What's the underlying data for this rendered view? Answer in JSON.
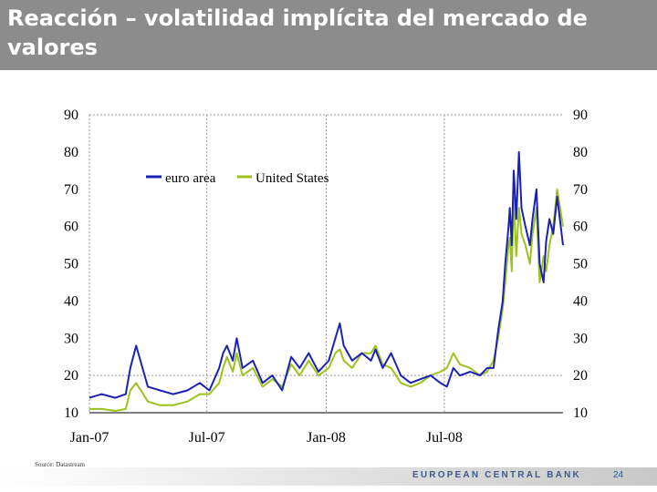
{
  "slide": {
    "title": "Reacción – volatilidad implícita del mercado de valores",
    "source": "Source: Datastream",
    "footer_logo": "EUROPEAN CENTRAL BANK",
    "page_number": "24"
  },
  "chart_data": {
    "type": "line",
    "title": "",
    "xlabel": "",
    "ylabel": "",
    "x_tick_labels": [
      "Jan-07",
      "Jul-07",
      "Jan-08",
      "Jul-08"
    ],
    "x_ticks": [
      "2007-01-01",
      "2007-07-01",
      "2008-01-01",
      "2008-07-01"
    ],
    "x_range": [
      "2007-01-01",
      "2008-12-31"
    ],
    "ylim": [
      10,
      90
    ],
    "y_ticks": [
      10,
      20,
      30,
      40,
      50,
      60,
      70,
      80,
      90
    ],
    "y_axis_sides": "both",
    "grid": "dashed horizontal and vertical",
    "legend_position": "top-left",
    "series": [
      {
        "name": "euro area",
        "color": "#1a22b4",
        "x": [
          "2007-01-01",
          "2007-01-20",
          "2007-02-10",
          "2007-02-26",
          "2007-03-05",
          "2007-03-14",
          "2007-04-01",
          "2007-04-20",
          "2007-05-10",
          "2007-06-01",
          "2007-06-20",
          "2007-07-05",
          "2007-07-20",
          "2007-07-26",
          "2007-08-01",
          "2007-08-10",
          "2007-08-16",
          "2007-08-25",
          "2007-09-10",
          "2007-09-25",
          "2007-10-10",
          "2007-10-25",
          "2007-11-08",
          "2007-11-21",
          "2007-12-05",
          "2007-12-20",
          "2008-01-05",
          "2008-01-15",
          "2008-01-22",
          "2008-01-28",
          "2008-02-10",
          "2008-02-25",
          "2008-03-10",
          "2008-03-17",
          "2008-03-28",
          "2008-04-10",
          "2008-04-25",
          "2008-05-10",
          "2008-05-25",
          "2008-06-10",
          "2008-06-25",
          "2008-07-05",
          "2008-07-15",
          "2008-07-25",
          "2008-08-10",
          "2008-08-25",
          "2008-09-05",
          "2008-09-15",
          "2008-09-22",
          "2008-09-29",
          "2008-10-03",
          "2008-10-08",
          "2008-10-10",
          "2008-10-13",
          "2008-10-16",
          "2008-10-20",
          "2008-10-24",
          "2008-10-28",
          "2008-11-03",
          "2008-11-10",
          "2008-11-14",
          "2008-11-20",
          "2008-11-25",
          "2008-12-01",
          "2008-12-05",
          "2008-12-10",
          "2008-12-16",
          "2008-12-22",
          "2008-12-31"
        ],
        "y": [
          14,
          15,
          14,
          15,
          22,
          28,
          17,
          16,
          15,
          16,
          18,
          16,
          22,
          26,
          28,
          24,
          30,
          22,
          24,
          18,
          20,
          16,
          25,
          22,
          26,
          21,
          24,
          30,
          34,
          28,
          24,
          26,
          24,
          27,
          22,
          26,
          20,
          18,
          19,
          20,
          18,
          17,
          22,
          20,
          21,
          20,
          22,
          22,
          32,
          40,
          50,
          60,
          65,
          55,
          75,
          62,
          80,
          65,
          60,
          55,
          62,
          70,
          50,
          45,
          56,
          62,
          58,
          68,
          55
        ]
      },
      {
        "name": "United States",
        "color": "#9cc31c",
        "x": [
          "2007-01-01",
          "2007-01-20",
          "2007-02-10",
          "2007-02-26",
          "2007-03-05",
          "2007-03-14",
          "2007-04-01",
          "2007-04-20",
          "2007-05-10",
          "2007-06-01",
          "2007-06-20",
          "2007-07-05",
          "2007-07-20",
          "2007-07-26",
          "2007-08-01",
          "2007-08-10",
          "2007-08-16",
          "2007-08-25",
          "2007-09-10",
          "2007-09-25",
          "2007-10-10",
          "2007-10-25",
          "2007-11-08",
          "2007-11-21",
          "2007-12-05",
          "2007-12-20",
          "2008-01-05",
          "2008-01-15",
          "2008-01-22",
          "2008-01-28",
          "2008-02-10",
          "2008-02-25",
          "2008-03-10",
          "2008-03-17",
          "2008-03-28",
          "2008-04-10",
          "2008-04-25",
          "2008-05-10",
          "2008-05-25",
          "2008-06-10",
          "2008-06-25",
          "2008-07-05",
          "2008-07-15",
          "2008-07-25",
          "2008-08-10",
          "2008-08-25",
          "2008-09-05",
          "2008-09-15",
          "2008-09-22",
          "2008-09-29",
          "2008-10-03",
          "2008-10-08",
          "2008-10-10",
          "2008-10-13",
          "2008-10-16",
          "2008-10-20",
          "2008-10-24",
          "2008-10-28",
          "2008-11-03",
          "2008-11-10",
          "2008-11-14",
          "2008-11-20",
          "2008-11-25",
          "2008-12-01",
          "2008-12-05",
          "2008-12-10",
          "2008-12-16",
          "2008-12-22",
          "2008-12-31"
        ],
        "y": [
          11,
          11,
          10.5,
          11,
          16,
          18,
          13,
          12,
          12,
          13,
          15,
          15,
          18,
          22,
          25,
          21,
          26,
          20,
          22,
          17,
          19,
          17,
          23,
          20,
          24,
          20,
          22,
          26,
          27,
          24,
          22,
          26,
          26,
          28,
          23,
          22,
          18,
          17,
          18,
          20,
          21,
          22,
          26,
          23,
          22,
          20,
          21,
          24,
          30,
          38,
          45,
          55,
          57,
          48,
          68,
          52,
          65,
          58,
          55,
          50,
          58,
          65,
          45,
          52,
          48,
          55,
          60,
          70,
          60
        ]
      }
    ]
  }
}
